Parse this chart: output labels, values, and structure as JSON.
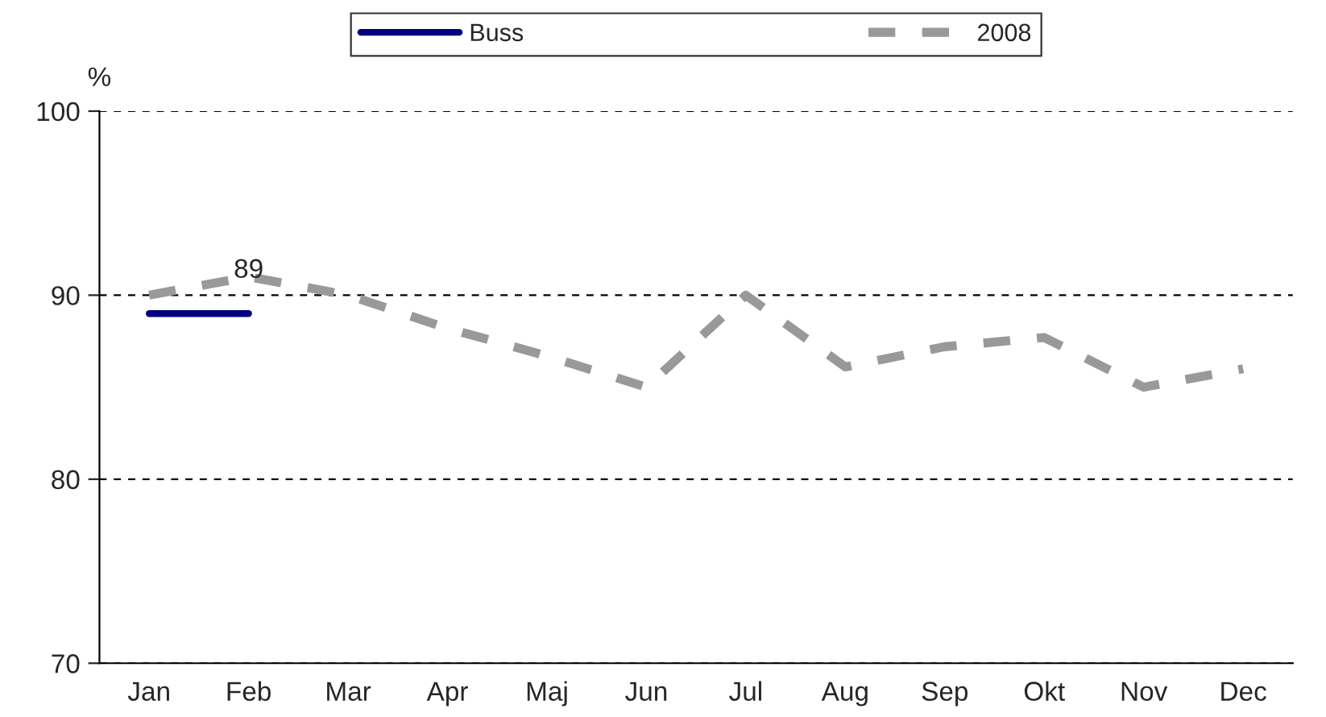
{
  "chart_data": {
    "type": "line",
    "ylabel": "%",
    "categories": [
      "Jan",
      "Feb",
      "Mar",
      "Apr",
      "Maj",
      "Jun",
      "Jul",
      "Aug",
      "Sep",
      "Okt",
      "Nov",
      "Dec"
    ],
    "series": [
      {
        "name": "Buss",
        "color": "#000080",
        "line_style": "solid",
        "values": [
          89,
          89,
          null,
          null,
          null,
          null,
          null,
          null,
          null,
          null,
          null,
          null
        ],
        "value_labels": [
          null,
          "89",
          null,
          null,
          null,
          null,
          null,
          null,
          null,
          null,
          null,
          null
        ]
      },
      {
        "name": "2008",
        "color": "#999999",
        "line_style": "dashed",
        "values": [
          90,
          91,
          90,
          88.2,
          86.7,
          85,
          90,
          86.1,
          87.2,
          87.7,
          85,
          86
        ]
      }
    ],
    "ylim": [
      70,
      100
    ],
    "yticks": [
      70,
      80,
      90,
      100
    ],
    "grid": "y",
    "legend": "top",
    "marker": "none"
  }
}
